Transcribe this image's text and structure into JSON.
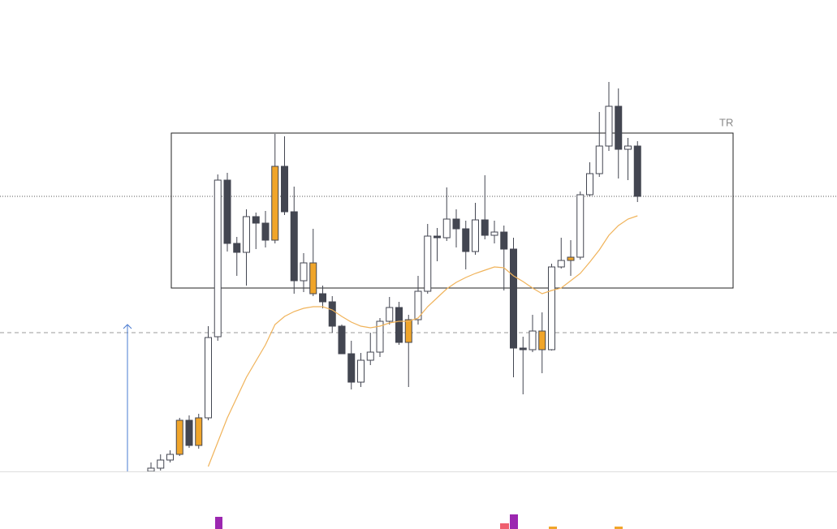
{
  "chart_data": {
    "type": "candlestick",
    "open": [
      71,
      75,
      85,
      92,
      134,
      103,
      137,
      237,
      430,
      352,
      341,
      385,
      377,
      356,
      447,
      391,
      306,
      328,
      290,
      280,
      250,
      216,
      181,
      208,
      218,
      256,
      273,
      230,
      258,
      293,
      361,
      359,
      382,
      370,
      342,
      381,
      362,
      366,
      345,
      223,
      221,
      244,
      221,
      323,
      331,
      335,
      412,
      438,
      472,
      521,
      468,
      472
    ],
    "high": [
      82,
      92,
      97,
      137,
      140,
      142,
      250,
      437,
      439,
      360,
      394,
      390,
      392,
      487,
      484,
      422,
      340,
      370,
      300,
      287,
      252,
      232,
      217,
      242,
      260,
      286,
      280,
      264,
      312,
      376,
      371,
      421,
      394,
      380,
      402,
      436,
      380,
      374,
      359,
      237,
      264,
      267,
      327,
      359,
      356,
      416,
      452,
      514,
      551,
      543,
      482,
      478
    ],
    "low": [
      71,
      72,
      82,
      90,
      100,
      99,
      134,
      232,
      342,
      312,
      300,
      345,
      347,
      352,
      387,
      290,
      292,
      287,
      272,
      242,
      216,
      172,
      175,
      202,
      212,
      252,
      227,
      175,
      252,
      290,
      330,
      355,
      347,
      320,
      338,
      357,
      352,
      294,
      187,
      166,
      218,
      192,
      220,
      321,
      312,
      332,
      410,
      434,
      466,
      432,
      430,
      403
    ],
    "close": [
      75,
      85,
      92,
      134,
      103,
      137,
      236,
      430,
      352,
      341,
      385,
      377,
      356,
      447,
      391,
      306,
      328,
      290,
      280,
      250,
      216,
      181,
      208,
      218,
      256,
      273,
      230,
      258,
      293,
      361,
      359,
      382,
      370,
      342,
      381,
      362,
      366,
      345,
      223,
      221,
      244,
      221,
      323,
      331,
      335,
      412,
      438,
      472,
      521,
      468,
      472,
      410
    ],
    "colors": [
      "#ffffff",
      "#ffffff",
      "#ffffff",
      "#f0a52a",
      "#434651",
      "#f0a52a",
      "#ffffff",
      "#ffffff",
      "#434651",
      "#434651",
      "#ffffff",
      "#434651",
      "#434651",
      "#f0a52a",
      "#434651",
      "#434651",
      "#ffffff",
      "#f0a52a",
      "#434651",
      "#434651",
      "#434651",
      "#434651",
      "#ffffff",
      "#ffffff",
      "#ffffff",
      "#ffffff",
      "#434651",
      "#f0a52a",
      "#ffffff",
      "#ffffff",
      "#434651",
      "#ffffff",
      "#434651",
      "#434651",
      "#ffffff",
      "#434651",
      "#ffffff",
      "#434651",
      "#434651",
      "#434651",
      "#ffffff",
      "#f0a52a",
      "#ffffff",
      "#ffffff",
      "#f0a52a",
      "#ffffff",
      "#ffffff",
      "#ffffff",
      "#ffffff",
      "#434651",
      "#ffffff",
      "#434651"
    ],
    "ma": {
      "color": "#f0b35a",
      "values": [
        null,
        null,
        null,
        null,
        null,
        null,
        77,
        107,
        137,
        162,
        187,
        207,
        227,
        252,
        262,
        268,
        272,
        274,
        274,
        270,
        262,
        255,
        250,
        248,
        250,
        254,
        256,
        256,
        260,
        274,
        285,
        296,
        304,
        310,
        315,
        319,
        323,
        322,
        312,
        305,
        297,
        290,
        294,
        297,
        306,
        315,
        329,
        344,
        362,
        374,
        382,
        386
      ]
    },
    "range_label": "TR",
    "ylim": [
      71,
      652
    ]
  }
}
